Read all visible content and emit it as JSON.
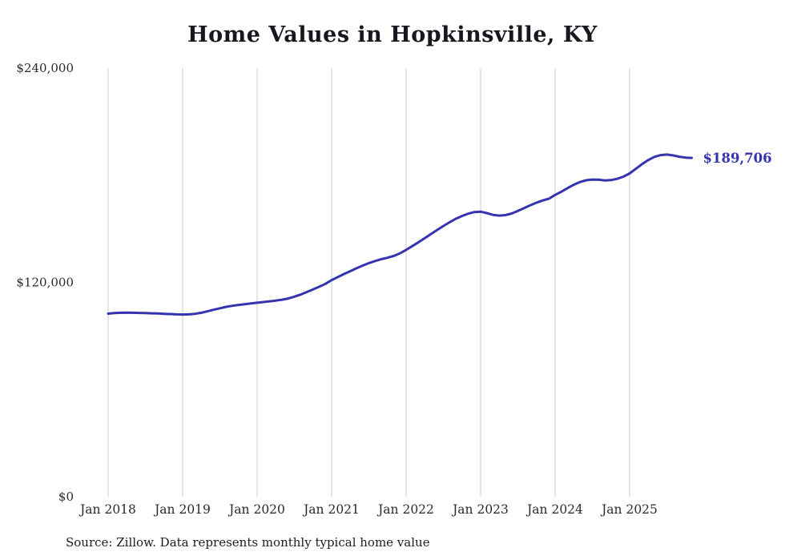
{
  "chart_data": {
    "type": "line",
    "title": "Home Values in Hopkinsville, KY",
    "source_note": "Source: Zillow. Data represents monthly typical home value",
    "series_name": "Monthly typical home value",
    "end_label": "$189,706",
    "last_value": 189706,
    "line_color": "#3534ae",
    "grid_color": "#cccccc",
    "ylim": [
      0,
      240000
    ],
    "y_ticks": [
      {
        "label": "$0",
        "value": 0
      },
      {
        "label": "$120,000",
        "value": 120000
      },
      {
        "label": "$240,000",
        "value": 240000
      }
    ],
    "x_tick_labels": [
      "Jan 2018",
      "Jan 2019",
      "Jan 2020",
      "Jan 2021",
      "Jan 2022",
      "Jan 2023",
      "Jan 2024",
      "Jan 2025"
    ],
    "x": [
      "2018-01",
      "2018-02",
      "2018-03",
      "2018-04",
      "2018-05",
      "2018-06",
      "2018-07",
      "2018-08",
      "2018-09",
      "2018-10",
      "2018-11",
      "2018-12",
      "2019-01",
      "2019-02",
      "2019-03",
      "2019-04",
      "2019-05",
      "2019-06",
      "2019-07",
      "2019-08",
      "2019-09",
      "2019-10",
      "2019-11",
      "2019-12",
      "2020-01",
      "2020-02",
      "2020-03",
      "2020-04",
      "2020-05",
      "2020-06",
      "2020-07",
      "2020-08",
      "2020-09",
      "2020-10",
      "2020-11",
      "2020-12",
      "2021-01",
      "2021-02",
      "2021-03",
      "2021-04",
      "2021-05",
      "2021-06",
      "2021-07",
      "2021-08",
      "2021-09",
      "2021-10",
      "2021-11",
      "2021-12",
      "2022-01",
      "2022-02",
      "2022-03",
      "2022-04",
      "2022-05",
      "2022-06",
      "2022-07",
      "2022-08",
      "2022-09",
      "2022-10",
      "2022-11",
      "2022-12",
      "2023-01",
      "2023-02",
      "2023-03",
      "2023-04",
      "2023-05",
      "2023-06",
      "2023-07",
      "2023-08",
      "2023-09",
      "2023-10",
      "2023-11",
      "2023-12",
      "2024-01",
      "2024-02",
      "2024-03",
      "2024-04",
      "2024-05",
      "2024-06",
      "2024-07",
      "2024-08",
      "2024-09",
      "2024-10",
      "2024-11",
      "2024-12",
      "2025-01",
      "2025-02",
      "2025-03",
      "2025-04",
      "2025-05",
      "2025-06",
      "2025-07",
      "2025-08",
      "2025-09",
      "2025-10",
      "2025-11"
    ],
    "values": [
      102500,
      102800,
      103000,
      103100,
      103000,
      102900,
      102800,
      102700,
      102600,
      102400,
      102300,
      102100,
      102000,
      102100,
      102400,
      103000,
      103800,
      104700,
      105500,
      106300,
      106900,
      107400,
      107800,
      108200,
      108600,
      109000,
      109400,
      109800,
      110300,
      111000,
      112000,
      113200,
      114600,
      116100,
      117600,
      119200,
      121300,
      123000,
      124700,
      126300,
      127900,
      129400,
      130800,
      132000,
      133000,
      133800,
      134800,
      136300,
      138200,
      140300,
      142500,
      144800,
      147100,
      149400,
      151600,
      153700,
      155600,
      157200,
      158500,
      159400,
      159600,
      158800,
      157800,
      157400,
      157700,
      158600,
      160000,
      161600,
      163200,
      164700,
      165900,
      166900,
      169000,
      170800,
      172800,
      174700,
      176200,
      177200,
      177600,
      177500,
      177100,
      177300,
      178000,
      179200,
      181000,
      183600,
      186200,
      188500,
      190300,
      191300,
      191600,
      191100,
      190400,
      189900,
      189706
    ]
  }
}
